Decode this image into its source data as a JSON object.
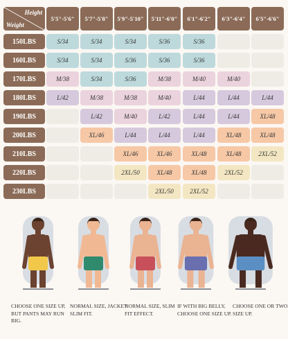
{
  "table": {
    "corner": {
      "top": "Height",
      "bottom": "Weight"
    },
    "columns": [
      "5'5\"-5'6\"",
      "5'7\"-5'8\"",
      "5'9\"-5'10\"",
      "5'11\"-6'0\"",
      "6'1\"-6'2\"",
      "6'3\"-6'4\"",
      "6'5\"-6'6\""
    ],
    "rows": [
      {
        "label": "150LBS",
        "cells": [
          "S/34",
          "S/34",
          "S/34",
          "S/36",
          "S/36",
          null,
          null
        ]
      },
      {
        "label": "160LBS",
        "cells": [
          "S/34",
          "S/34",
          "S/36",
          "S/36",
          "S/36",
          null,
          null
        ]
      },
      {
        "label": "170LBS",
        "cells": [
          "M/38",
          "S/34",
          "S/36",
          "M/38",
          "M/40",
          "M/40",
          null
        ]
      },
      {
        "label": "180LBS",
        "cells": [
          "L/42",
          "M/38",
          "M/38",
          "M/40",
          "L/44",
          "L/44",
          "L/44"
        ]
      },
      {
        "label": "190LBS",
        "cells": [
          null,
          "L/42",
          "M/40",
          "L/42",
          "L/44",
          "L/44",
          "XL/48"
        ]
      },
      {
        "label": "200LBS",
        "cells": [
          null,
          "XL/46",
          "L/44",
          "L/44",
          "L/44",
          "XL/48",
          "XL/48"
        ]
      },
      {
        "label": "210LBS",
        "cells": [
          null,
          null,
          "XL/46",
          "XL/46",
          "XL/48",
          "XL/48",
          "2XL/52"
        ]
      },
      {
        "label": "220LBS",
        "cells": [
          null,
          null,
          "2XL/50",
          "XL/48",
          "XL/48",
          "2XL/52",
          null
        ]
      },
      {
        "label": "230LBS",
        "cells": [
          null,
          null,
          null,
          "2XL/50",
          "2XL/52",
          null,
          null
        ]
      }
    ]
  },
  "captions": [
    "CHOOSE ONE SIZE UP, BUT PANTS MAY RUN BIG.",
    "NORMAL SIZE, JACKET SLIM FIT.",
    "NORMAL SIZE, SLIM FIT EFFECT.",
    "IF WITH BIG BELLY, CHOOSE ONE SIZE UP.",
    "CHOOSE ONE OR TWO SIZE UP."
  ]
}
